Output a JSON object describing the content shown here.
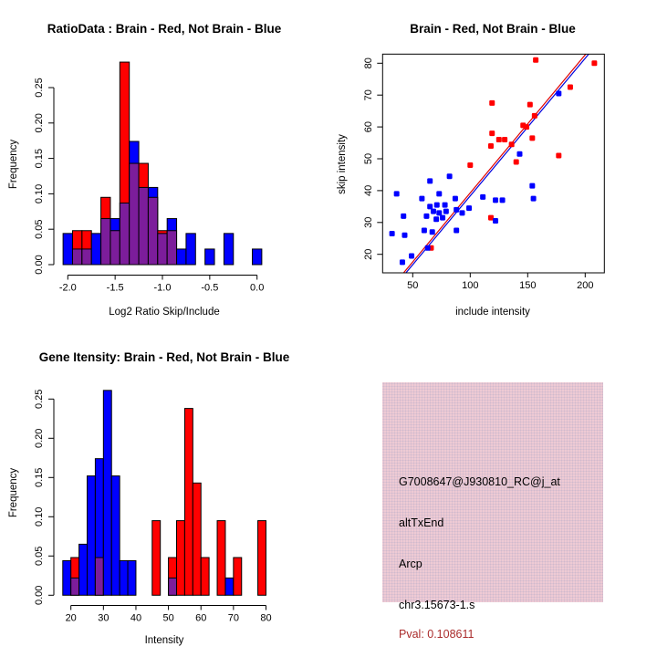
{
  "colors": {
    "brain_red": "#ff0000",
    "not_brain_blue": "#0000ff",
    "overlap_purple": "#7c1d9b",
    "fit_red": "#e00000",
    "fit_blue": "#0000dd",
    "axis_black": "#000000",
    "info_bg": "#eecad4",
    "pval_red": "#aa2b2b"
  },
  "chart_data": [
    {
      "id": "ratio_histogram",
      "type": "bar",
      "subtype": "overlaid-histogram",
      "title": "RatioData : Brain - Red, Not Brain - Blue",
      "xlabel": "Log2 Ratio Skip/Include",
      "ylabel": "Frequency",
      "xlim": [
        -2.1,
        0.1
      ],
      "ylim": [
        0,
        0.29
      ],
      "grid": false,
      "xticks": [
        "-2.0",
        "-1.5",
        "-1.0",
        "-0.5",
        "0.0"
      ],
      "xtick_values": [
        -2.0,
        -1.5,
        -1.0,
        -0.5,
        0.0
      ],
      "yticks": [
        "0.00",
        "0.05",
        "0.10",
        "0.15",
        "0.20",
        "0.25"
      ],
      "ytick_values": [
        0,
        0.05,
        0.1,
        0.15,
        0.2,
        0.25
      ],
      "bin_width": 0.1,
      "series": [
        {
          "name": "Brain (red)",
          "color_key": "brain_red",
          "bins": [
            {
              "start": -1.95,
              "v": 0.048
            },
            {
              "start": -1.85,
              "v": 0.048
            },
            {
              "start": -1.65,
              "v": 0.095
            },
            {
              "start": -1.55,
              "v": 0.048
            },
            {
              "start": -1.45,
              "v": 0.286
            },
            {
              "start": -1.35,
              "v": 0.143
            },
            {
              "start": -1.25,
              "v": 0.143
            },
            {
              "start": -1.15,
              "v": 0.095
            },
            {
              "start": -1.05,
              "v": 0.048
            },
            {
              "start": -0.95,
              "v": 0.048
            }
          ]
        },
        {
          "name": "Not Brain (blue)",
          "color_key": "not_brain_blue",
          "bins": [
            {
              "start": -2.05,
              "v": 0.044
            },
            {
              "start": -1.95,
              "v": 0.022
            },
            {
              "start": -1.85,
              "v": 0.022
            },
            {
              "start": -1.75,
              "v": 0.044
            },
            {
              "start": -1.65,
              "v": 0.065
            },
            {
              "start": -1.55,
              "v": 0.065
            },
            {
              "start": -1.45,
              "v": 0.087
            },
            {
              "start": -1.35,
              "v": 0.174
            },
            {
              "start": -1.25,
              "v": 0.109
            },
            {
              "start": -1.15,
              "v": 0.109
            },
            {
              "start": -1.05,
              "v": 0.044
            },
            {
              "start": -0.95,
              "v": 0.065
            },
            {
              "start": -0.85,
              "v": 0.022
            },
            {
              "start": -0.75,
              "v": 0.044
            },
            {
              "start": -0.55,
              "v": 0.022
            },
            {
              "start": -0.35,
              "v": 0.044
            },
            {
              "start": -0.05,
              "v": 0.022
            }
          ]
        }
      ]
    },
    {
      "id": "intensity_scatter",
      "type": "scatter",
      "title": "Brain - Red, Not Brain - Blue",
      "xlabel": "include intensity",
      "ylabel": "skip intensity",
      "xlim": [
        24,
        217
      ],
      "ylim": [
        14,
        83
      ],
      "grid": false,
      "xticks": [
        "50",
        "100",
        "150",
        "200"
      ],
      "xtick_values": [
        50,
        100,
        150,
        200
      ],
      "yticks": [
        "20",
        "30",
        "40",
        "50",
        "60",
        "70",
        "80"
      ],
      "ytick_values": [
        20,
        30,
        40,
        50,
        60,
        70,
        80
      ],
      "series": [
        {
          "name": "Brain (red)",
          "color_key": "brain_red",
          "points": [
            [
              157,
              81
            ],
            [
              208,
              80
            ],
            [
              187,
              72.5
            ],
            [
              119,
              67.5
            ],
            [
              152,
              67
            ],
            [
              156,
              63.5
            ],
            [
              146,
              60.5
            ],
            [
              149,
              60
            ],
            [
              119,
              58
            ],
            [
              125,
              56
            ],
            [
              130,
              56
            ],
            [
              136,
              54.5
            ],
            [
              118,
              54
            ],
            [
              154,
              56.5
            ],
            [
              140,
              49
            ],
            [
              100,
              48
            ],
            [
              177,
              51
            ],
            [
              118,
              31.5
            ],
            [
              66,
              22
            ]
          ]
        },
        {
          "name": "Not Brain (blue)",
          "color_key": "not_brain_blue",
          "points": [
            [
              177,
              70.5
            ],
            [
              143,
              51.5
            ],
            [
              154,
              41.5
            ],
            [
              155,
              37.5
            ],
            [
              122,
              37
            ],
            [
              128,
              37
            ],
            [
              122,
              30.5
            ],
            [
              111,
              38
            ],
            [
              99,
              34.5
            ],
            [
              93,
              33
            ],
            [
              88,
              34
            ],
            [
              65,
              43
            ],
            [
              82,
              44.5
            ],
            [
              36,
              39
            ],
            [
              73,
              39
            ],
            [
              58,
              37.5
            ],
            [
              87,
              37.5
            ],
            [
              65,
              35
            ],
            [
              71,
              35.5
            ],
            [
              78,
              35.5
            ],
            [
              68,
              33.5
            ],
            [
              73,
              33
            ],
            [
              79,
              33.5
            ],
            [
              62,
              32
            ],
            [
              70.5,
              31
            ],
            [
              76,
              31.5
            ],
            [
              42,
              32
            ],
            [
              60,
              27.5
            ],
            [
              67,
              27
            ],
            [
              88,
              27.5
            ],
            [
              32,
              26.5
            ],
            [
              43,
              26
            ],
            [
              49,
              19.5
            ],
            [
              41,
              17.5
            ],
            [
              63,
              22
            ]
          ]
        }
      ],
      "fit_lines": [
        {
          "name": "brain-fit",
          "color_key": "fit_red",
          "from": [
            40.5,
            13.5
          ],
          "to": [
            202,
            83.5
          ]
        },
        {
          "name": "not-brain-fit",
          "color_key": "fit_blue",
          "from": [
            42.5,
            13.5
          ],
          "to": [
            204.5,
            83.5
          ]
        }
      ]
    },
    {
      "id": "gene_intensity_histogram",
      "type": "bar",
      "subtype": "overlaid-histogram",
      "title": "Gene Itensity: Brain - Red, Not Brain - Blue",
      "xlabel": "Intensity",
      "ylabel": "Frequency",
      "xlim": [
        17.5,
        80
      ],
      "ylim": [
        0,
        0.265
      ],
      "grid": false,
      "xticks": [
        "20",
        "30",
        "40",
        "50",
        "60",
        "70",
        "80"
      ],
      "xtick_values": [
        20,
        30,
        40,
        50,
        60,
        70,
        80
      ],
      "yticks": [
        "0.00",
        "0.05",
        "0.10",
        "0.15",
        "0.20",
        "0.25"
      ],
      "ytick_values": [
        0,
        0.05,
        0.1,
        0.15,
        0.2,
        0.25
      ],
      "bin_width": 2.5,
      "series": [
        {
          "name": "Brain (red)",
          "color_key": "brain_red",
          "bins": [
            {
              "start": 20,
              "v": 0.048
            },
            {
              "start": 27.5,
              "v": 0.048
            },
            {
              "start": 45,
              "v": 0.095
            },
            {
              "start": 50,
              "v": 0.048
            },
            {
              "start": 52.5,
              "v": 0.095
            },
            {
              "start": 55,
              "v": 0.238
            },
            {
              "start": 57.5,
              "v": 0.143
            },
            {
              "start": 60,
              "v": 0.048
            },
            {
              "start": 65,
              "v": 0.095
            },
            {
              "start": 70,
              "v": 0.048
            },
            {
              "start": 77.5,
              "v": 0.095
            }
          ]
        },
        {
          "name": "Not Brain (blue)",
          "color_key": "not_brain_blue",
          "bins": [
            {
              "start": 17.5,
              "v": 0.044
            },
            {
              "start": 20,
              "v": 0.022
            },
            {
              "start": 22.5,
              "v": 0.065
            },
            {
              "start": 25,
              "v": 0.152
            },
            {
              "start": 27.5,
              "v": 0.174
            },
            {
              "start": 30,
              "v": 0.261
            },
            {
              "start": 32.5,
              "v": 0.152
            },
            {
              "start": 35,
              "v": 0.044
            },
            {
              "start": 37.5,
              "v": 0.044
            },
            {
              "start": 50,
              "v": 0.022
            },
            {
              "start": 67.5,
              "v": 0.022
            }
          ]
        }
      ]
    }
  ],
  "info_panel": {
    "lines": [
      "G7008647@J930810_RC@j_at",
      "altTxEnd",
      "Arcp",
      "chr3.15673-1.s"
    ],
    "pval": "Pval: 0.108611"
  }
}
